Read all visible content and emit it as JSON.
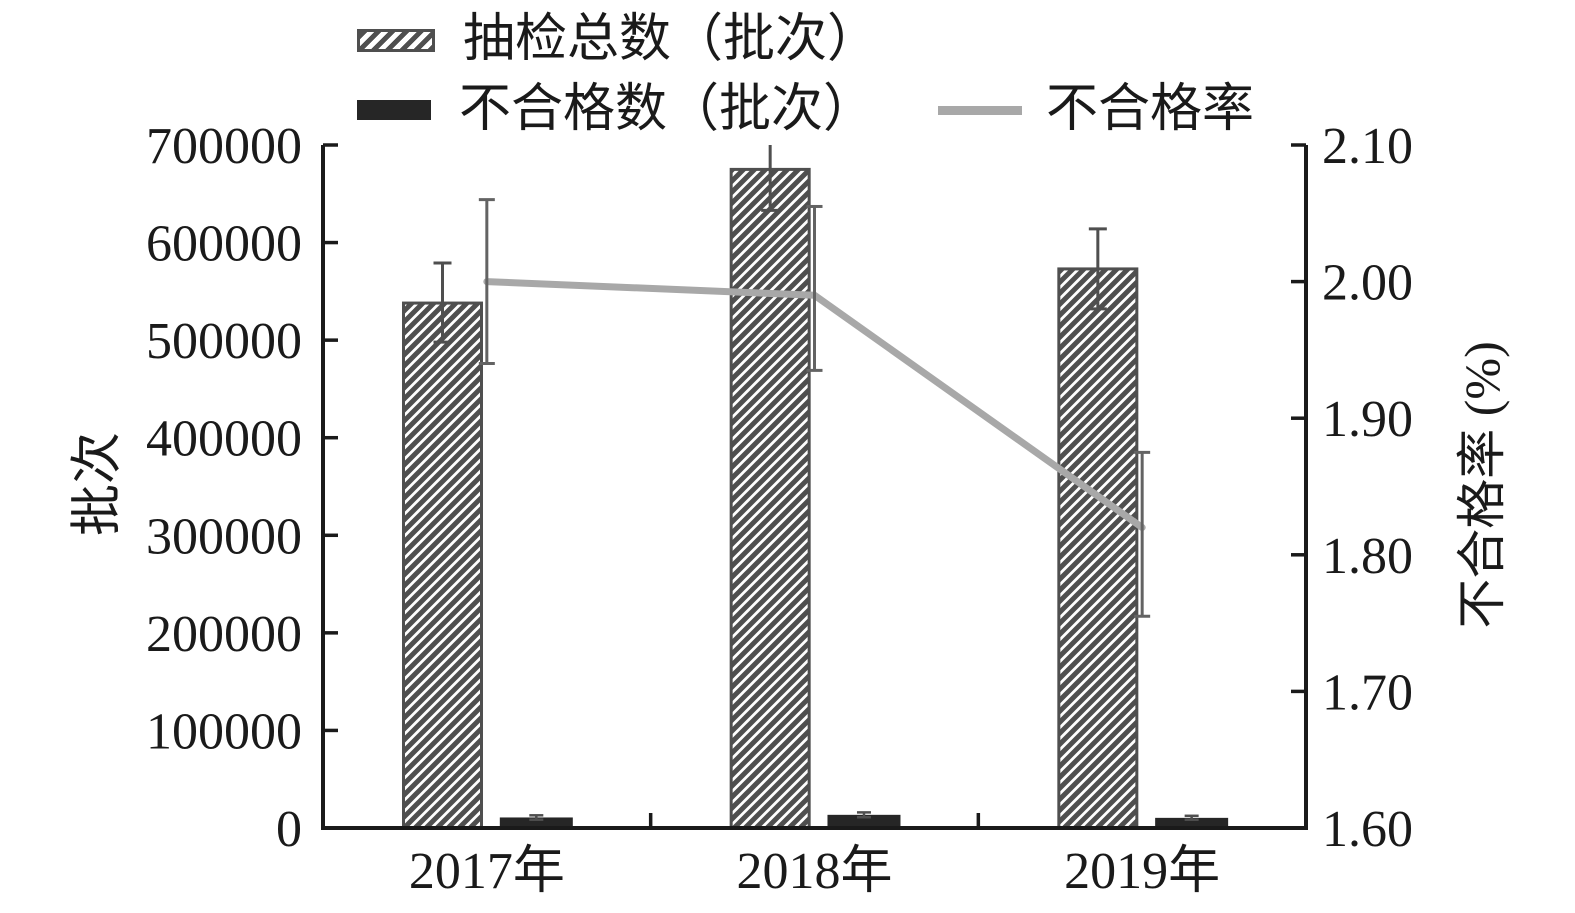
{
  "page": {
    "background": "#ffffff"
  },
  "chart_data": {
    "type": "bar+line-dual-axis",
    "categories": [
      "2017年",
      "2018年",
      "2019年"
    ],
    "series": [
      {
        "name": "抽检总数（批次）",
        "type": "bar",
        "axis": "left",
        "style": "hatched",
        "values": [
          538000,
          675000,
          573000
        ],
        "error_low": [
          498000,
          633000,
          532000
        ],
        "error_high": [
          579000,
          717000,
          614000
        ]
      },
      {
        "name": "不合格数（批次）",
        "type": "bar",
        "axis": "left",
        "style": "solid-black",
        "values": [
          10800,
          13500,
          10400
        ],
        "error_low": [
          8500,
          11000,
          8500
        ],
        "error_high": [
          13000,
          16000,
          12500
        ]
      },
      {
        "name": "不合格率",
        "type": "line",
        "axis": "right",
        "style": "gray-line",
        "values": [
          2.0,
          1.99,
          1.82
        ],
        "error_low": [
          1.94,
          1.935,
          1.755
        ],
        "error_high": [
          2.06,
          2.055,
          1.875
        ]
      }
    ],
    "left_axis": {
      "label": "批次",
      "min": 0,
      "max": 700000,
      "tick_step": 100000,
      "ticks": [
        "700000",
        "600000",
        "500000",
        "400000",
        "300000",
        "200000",
        "100000",
        "0"
      ]
    },
    "right_axis": {
      "label": "不合格率 (%)",
      "min": 1.6,
      "max": 2.1,
      "tick_step": 0.1,
      "ticks": [
        "2.10",
        "2.00",
        "1.90",
        "1.80",
        "1.70",
        "1.60"
      ]
    },
    "legend_position": "top",
    "grid": "off",
    "colors": {
      "hatch_bar": "#4f4f4f",
      "solid_bar": "#262626",
      "line": "#a8a8a8",
      "bar_error": "#4f4f4f",
      "line_error": "#636363",
      "axis": "#1a1a1a",
      "text": "#1a1a1a"
    }
  }
}
